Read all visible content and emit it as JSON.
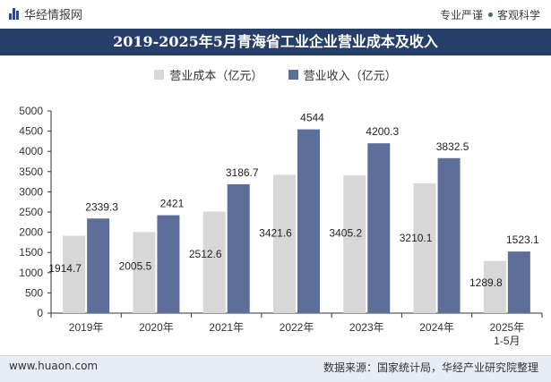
{
  "header": {
    "brand": "华经情报网",
    "tagline_1": "专业严谨",
    "tagline_2": "客观科学"
  },
  "colors": {
    "title_bg": "#263e6a",
    "cost": "#d7d7d7",
    "revenue": "#5d6f99"
  },
  "chart_data": {
    "type": "bar",
    "title": "2019-2025年5月青海省工业企业营业成本及收入",
    "categories": [
      "2019年",
      "2020年",
      "2021年",
      "2022年",
      "2023年",
      "2024年",
      "2025年 1-5月"
    ],
    "series": [
      {
        "name": "营业成本（亿元）",
        "values": [
          1914.7,
          2005.5,
          2512.6,
          3421.6,
          3405.2,
          3210.1,
          1289.8
        ]
      },
      {
        "name": "营业收入（亿元）",
        "values": [
          2339.3,
          2421,
          3186.7,
          4544,
          4200.3,
          3832.5,
          1523.1
        ]
      }
    ],
    "value_labels": [
      [
        "1914.7",
        "2005.5",
        "2512.6",
        "3421.6",
        "3405.2",
        "3210.1",
        "1289.8"
      ],
      [
        "2339.3",
        "2421",
        "3186.7",
        "4544",
        "4200.3",
        "3832.5",
        "1523.1"
      ]
    ],
    "y_ticks": [
      0,
      500,
      1000,
      1500,
      2000,
      2500,
      3000,
      3500,
      4000,
      4500,
      5000
    ],
    "ylim": [
      0,
      5000
    ],
    "xlabel": "",
    "ylabel": "",
    "legend_position": "top-center",
    "grid": false
  },
  "footer": {
    "website": "www.huaon.com",
    "source": "数据来源：国家统计局，华经产业研究院整理"
  }
}
